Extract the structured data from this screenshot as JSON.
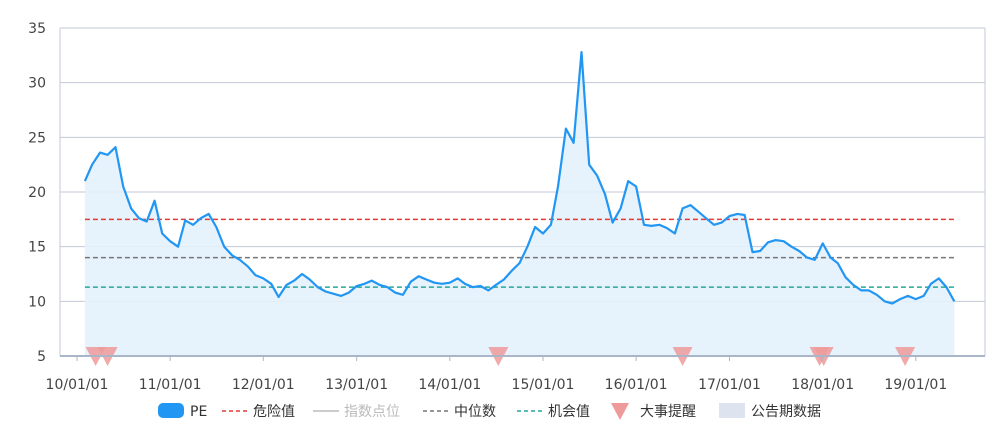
{
  "chart_data": {
    "type": "line",
    "ylim": [
      5,
      35
    ],
    "y_ticks": [
      "5",
      "10",
      "15",
      "20",
      "25",
      "30",
      "35"
    ],
    "x_ticks": [
      "10/01/01",
      "11/01/01",
      "12/01/01",
      "13/01/01",
      "14/01/01",
      "15/01/01",
      "16/01/01",
      "17/01/01",
      "18/01/01",
      "19/01/01"
    ],
    "x_range": [
      "2010-01-01",
      "2019-07-01"
    ],
    "grid": true,
    "legend_position": "bottom",
    "series": [
      {
        "name": "PE",
        "color": "#2196f3",
        "area": true,
        "x": [
          "2010-02",
          "2010-03",
          "2010-04",
          "2010-05",
          "2010-06",
          "2010-07",
          "2010-08",
          "2010-09",
          "2010-10",
          "2010-11",
          "2010-12",
          "2011-01",
          "2011-02",
          "2011-03",
          "2011-04",
          "2011-05",
          "2011-06",
          "2011-07",
          "2011-08",
          "2011-09",
          "2011-10",
          "2011-11",
          "2011-12",
          "2012-01",
          "2012-02",
          "2012-03",
          "2012-04",
          "2012-05",
          "2012-06",
          "2012-07",
          "2012-08",
          "2012-09",
          "2012-10",
          "2012-11",
          "2012-12",
          "2013-01",
          "2013-02",
          "2013-03",
          "2013-04",
          "2013-05",
          "2013-06",
          "2013-07",
          "2013-08",
          "2013-09",
          "2013-10",
          "2013-11",
          "2013-12",
          "2014-01",
          "2014-02",
          "2014-03",
          "2014-04",
          "2014-05",
          "2014-06",
          "2014-07",
          "2014-08",
          "2014-09",
          "2014-10",
          "2014-11",
          "2014-12",
          "2015-01",
          "2015-02",
          "2015-03",
          "2015-04",
          "2015-05",
          "2015-06",
          "2015-07",
          "2015-08",
          "2015-09",
          "2015-10",
          "2015-11",
          "2015-12",
          "2016-01",
          "2016-02",
          "2016-03",
          "2016-04",
          "2016-05",
          "2016-06",
          "2016-07",
          "2016-08",
          "2016-09",
          "2016-10",
          "2016-11",
          "2016-12",
          "2017-01",
          "2017-02",
          "2017-03",
          "2017-04",
          "2017-05",
          "2017-06",
          "2017-07",
          "2017-08",
          "2017-09",
          "2017-10",
          "2017-11",
          "2017-12",
          "2018-01",
          "2018-02",
          "2018-03",
          "2018-04",
          "2018-05",
          "2018-06",
          "2018-07",
          "2018-08",
          "2018-09",
          "2018-10",
          "2018-11",
          "2018-12",
          "2019-01",
          "2019-02",
          "2019-03",
          "2019-04",
          "2019-05",
          "2019-06"
        ],
        "values": [
          21.0,
          22.5,
          23.6,
          23.4,
          24.1,
          20.5,
          18.5,
          17.6,
          17.3,
          19.2,
          16.2,
          15.5,
          15.0,
          17.4,
          17.0,
          17.6,
          18.0,
          16.8,
          15.0,
          14.2,
          13.8,
          13.2,
          12.4,
          12.1,
          11.6,
          10.4,
          11.5,
          11.9,
          12.5,
          12.0,
          11.3,
          10.9,
          10.7,
          10.5,
          10.8,
          11.4,
          11.6,
          11.9,
          11.5,
          11.3,
          10.8,
          10.6,
          11.8,
          12.3,
          12.0,
          11.7,
          11.6,
          11.7,
          12.1,
          11.6,
          11.3,
          11.4,
          11.0,
          11.5,
          12.0,
          12.8,
          13.5,
          15.0,
          16.8,
          16.2,
          17.0,
          20.5,
          25.8,
          24.5,
          32.8,
          22.5,
          21.5,
          19.8,
          17.2,
          18.5,
          21.0,
          20.5,
          17.0,
          16.9,
          17.0,
          16.7,
          16.2,
          18.5,
          18.8,
          18.2,
          17.6,
          17.0,
          17.2,
          17.8,
          18.0,
          17.9,
          14.5,
          14.6,
          15.4,
          15.6,
          15.5,
          15.0,
          14.6,
          14.0,
          13.8,
          15.3,
          14.0,
          13.5,
          12.2,
          11.5,
          11.0,
          11.0,
          10.6,
          10.0,
          9.8,
          10.2,
          10.5,
          10.2,
          10.5,
          11.6,
          12.1,
          11.3,
          10.0
        ]
      },
      {
        "name": "危险值",
        "color": "#e53935",
        "style": "dashed",
        "value": 17.5
      },
      {
        "name": "指数点位",
        "color": "#cccccc",
        "hidden": true
      },
      {
        "name": "中位数",
        "color": "#757575",
        "style": "dashed",
        "value": 14.0
      },
      {
        "name": "机会值",
        "color": "#26a69a",
        "style": "dashed",
        "value": 11.3
      },
      {
        "name": "大事提醒",
        "color": "#ef9a9a",
        "markers": [
          "2010-03-15",
          "2010-05-01",
          "2014-07-10",
          "2016-07-01",
          "2017-12-20",
          "2018-01-05",
          "2018-11-20"
        ]
      },
      {
        "name": "公告期数据",
        "color": "#dde3ef"
      }
    ]
  },
  "legend": {
    "pe": "PE",
    "danger": "危险值",
    "index_points": "指数点位",
    "median": "中位数",
    "opportunity": "机会值",
    "events": "大事提醒",
    "announcement": "公告期数据"
  }
}
